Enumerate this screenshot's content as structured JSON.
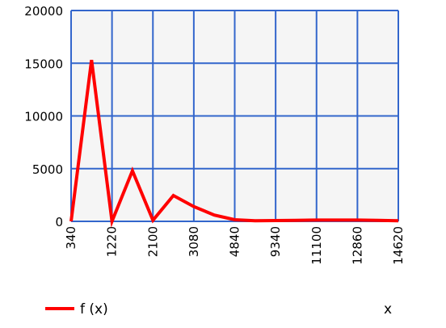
{
  "chart_data": {
    "type": "line",
    "x_tick_labels": [
      "340",
      "1220",
      "2100",
      "3080",
      "4840",
      "9340",
      "11100",
      "12860",
      "14620"
    ],
    "x": [
      340,
      780,
      1220,
      1660,
      2100,
      2590,
      3080,
      3960,
      4840,
      7090,
      9340,
      10220,
      11100,
      11980,
      12860,
      13740,
      14620
    ],
    "y_ticks": [
      0,
      5000,
      10000,
      15000,
      20000
    ],
    "ylim": [
      0,
      20000
    ],
    "series": [
      {
        "name": "f (x)",
        "color": "#ff0000",
        "values": [
          0,
          15300,
          0,
          4800,
          100,
          2450,
          1400,
          600,
          150,
          50,
          80,
          100,
          120,
          120,
          120,
          100,
          60
        ]
      }
    ],
    "xlabel": "x",
    "grid": true,
    "legend": "bottom-left",
    "plot_background": "#f5f5f5",
    "grid_color": "#3366cc"
  }
}
